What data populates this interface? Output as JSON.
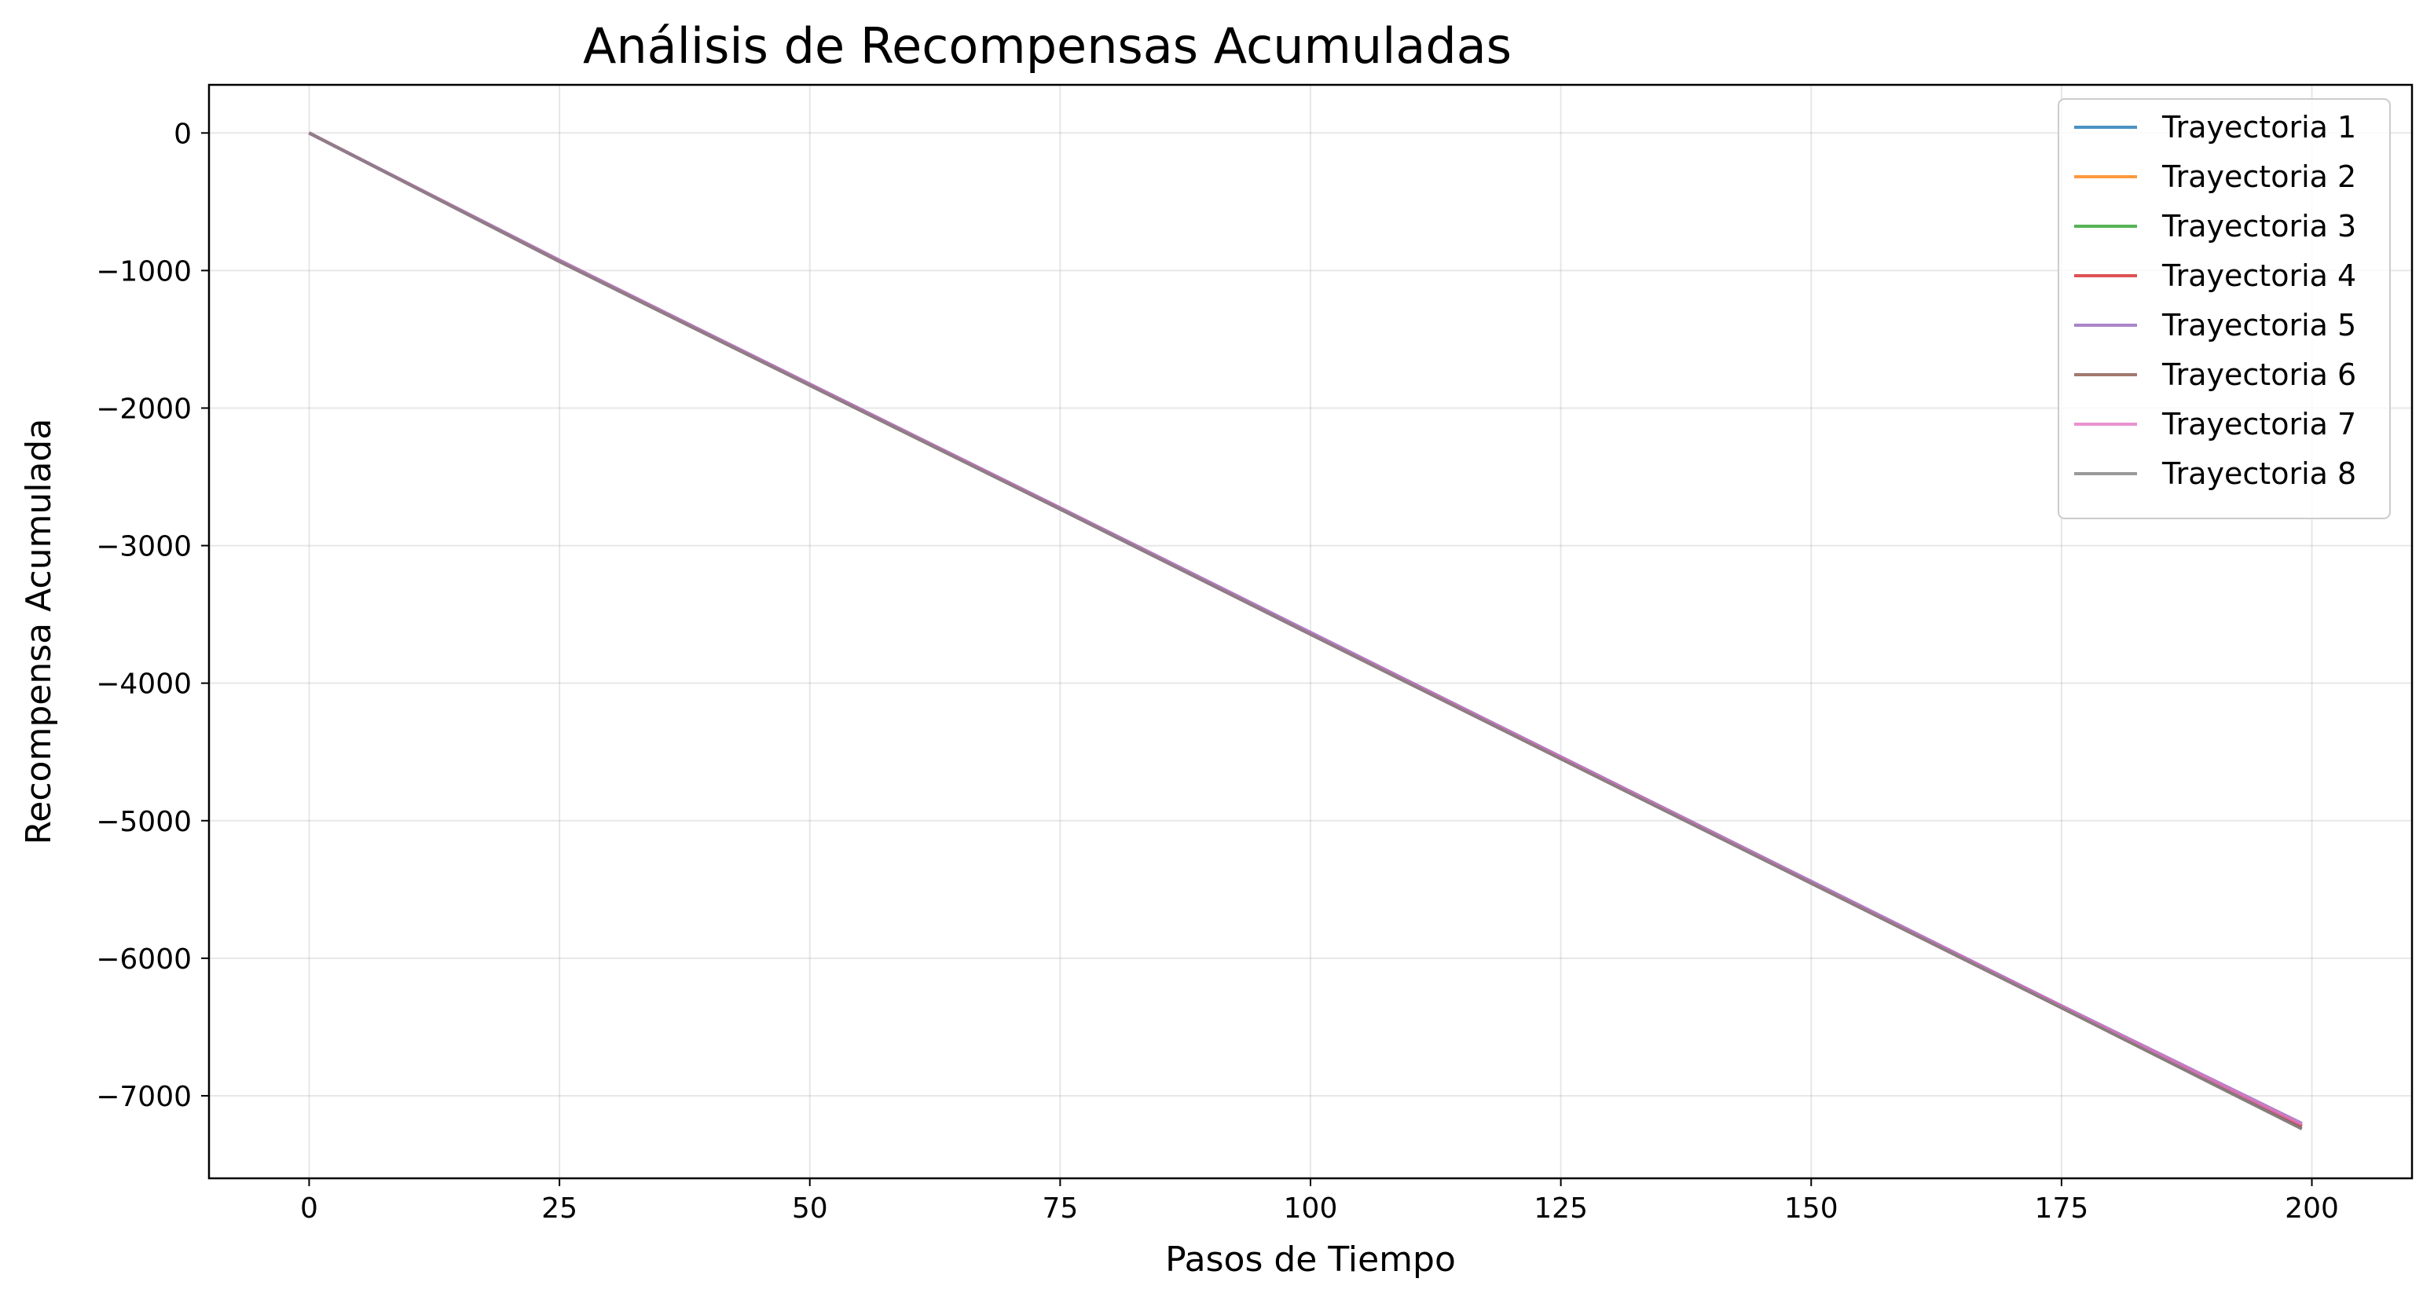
{
  "chart_data": {
    "type": "line",
    "title": "Análisis de Recompensas Acumuladas",
    "xlabel": "Pasos de Tiempo",
    "ylabel": "Recompensa Acumulada",
    "xlim": [
      -10,
      210
    ],
    "ylim": [
      -7600,
      350
    ],
    "xticks": [
      0,
      25,
      50,
      75,
      100,
      125,
      150,
      175,
      200
    ],
    "xtick_labels": [
      "0",
      "25",
      "50",
      "75",
      "100",
      "125",
      "150",
      "175",
      "200"
    ],
    "yticks": [
      0,
      -1000,
      -2000,
      -3000,
      -4000,
      -5000,
      -6000,
      -7000
    ],
    "ytick_labels": [
      "0",
      "−1000",
      "−2000",
      "−3000",
      "−4000",
      "−5000",
      "−6000",
      "−7000"
    ],
    "grid": true,
    "legend_position": "top-right",
    "x": [
      0,
      25,
      50,
      75,
      100,
      125,
      150,
      175,
      199
    ],
    "series": [
      {
        "name": "Trayectoria 1",
        "color": "#1f77b4",
        "values": [
          0,
          -930,
          -1830,
          -2730,
          -3640,
          -4540,
          -5450,
          -6350,
          -7220
        ]
      },
      {
        "name": "Trayectoria 2",
        "color": "#ff7f0e",
        "values": [
          0,
          -930,
          -1830,
          -2730,
          -3640,
          -4540,
          -5450,
          -6350,
          -7220
        ]
      },
      {
        "name": "Trayectoria 3",
        "color": "#2ca02c",
        "values": [
          0,
          -930,
          -1830,
          -2730,
          -3640,
          -4540,
          -5450,
          -6350,
          -7220
        ]
      },
      {
        "name": "Trayectoria 4",
        "color": "#d62728",
        "values": [
          0,
          -930,
          -1830,
          -2730,
          -3640,
          -4540,
          -5450,
          -6350,
          -7220
        ]
      },
      {
        "name": "Trayectoria 5",
        "color": "#9467bd",
        "values": [
          0,
          -925,
          -1825,
          -2725,
          -3630,
          -4535,
          -5440,
          -6345,
          -7200
        ]
      },
      {
        "name": "Trayectoria 6",
        "color": "#8c564b",
        "values": [
          0,
          -935,
          -1835,
          -2735,
          -3645,
          -4550,
          -5455,
          -6360,
          -7240
        ]
      },
      {
        "name": "Trayectoria 7",
        "color": "#e377c2",
        "values": [
          0,
          -930,
          -1830,
          -2730,
          -3640,
          -4540,
          -5450,
          -6350,
          -7210
        ]
      },
      {
        "name": "Trayectoria 8",
        "color": "#7f7f7f",
        "values": [
          0,
          -935,
          -1835,
          -2735,
          -3645,
          -4550,
          -5455,
          -6360,
          -7240
        ]
      }
    ]
  }
}
